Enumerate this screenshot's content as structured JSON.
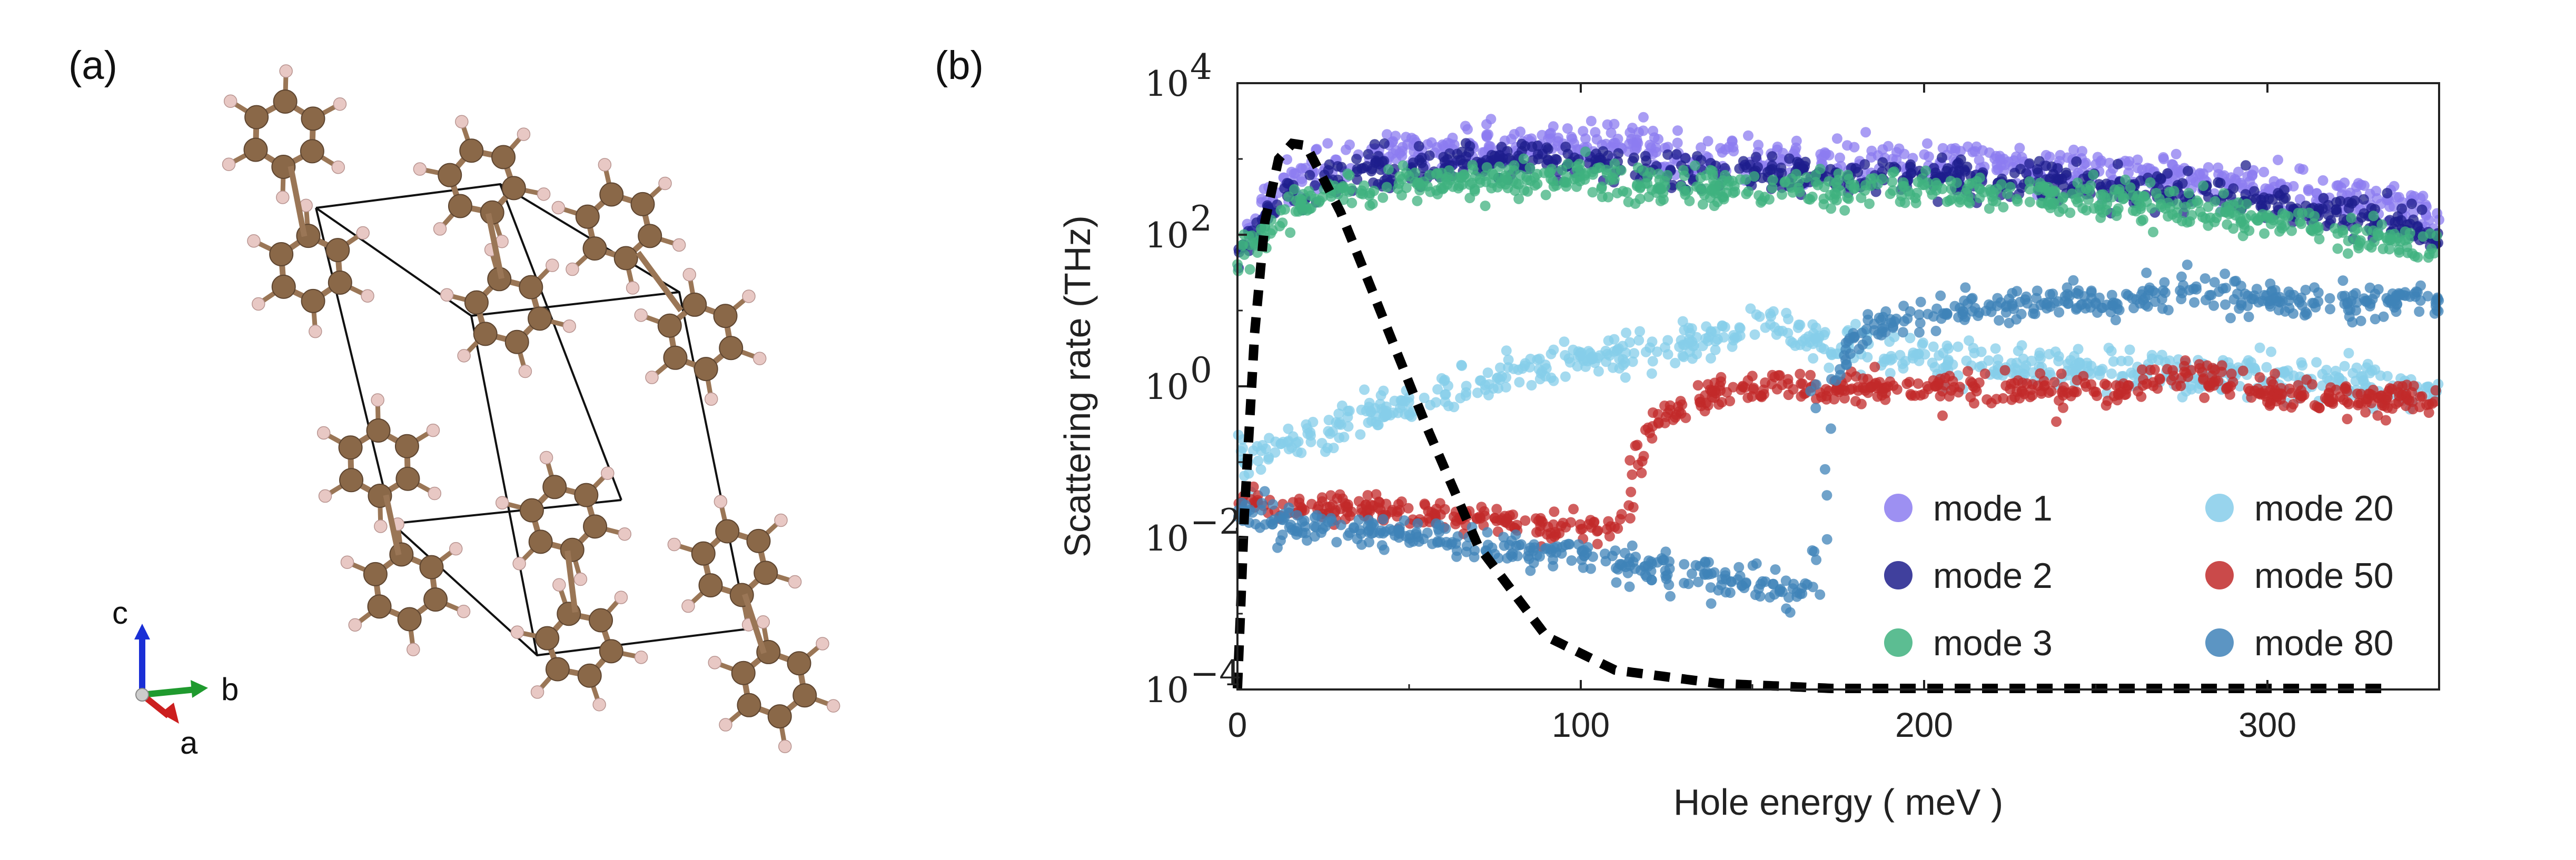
{
  "panel_a": {
    "label": "(a)",
    "triad": {
      "c": "c",
      "b": "b",
      "a": "a"
    },
    "colors": {
      "carbon": "#8a6848",
      "hydrogen": "#e8c8c4",
      "bond": "#9a7656",
      "cell": "#111111",
      "axis_c": "#1a2fd6",
      "axis_b": "#1f9a2e",
      "axis_a": "#cc1f1f"
    }
  },
  "panel_b": {
    "label": "(b)"
  },
  "chart_data": {
    "type": "scatter",
    "xlabel": "Hole energy ( meV )",
    "ylabel": "Scattering rate (THz)",
    "xlim": [
      0,
      350
    ],
    "ylim_log10": [
      -4,
      4
    ],
    "y_scale": "log",
    "x_ticks": [
      "0",
      "100",
      "200",
      "300"
    ],
    "y_ticks": [
      {
        "base": "10",
        "exp": "−4"
      },
      {
        "base": "10",
        "exp": "−2"
      },
      {
        "base": "10",
        "exp": "0"
      },
      {
        "base": "10",
        "exp": "2"
      },
      {
        "base": "10",
        "exp": "4"
      }
    ],
    "legend_placement": "lower-right",
    "series": [
      {
        "name": "mode 1",
        "color": "#8c7cf0",
        "x": [
          0,
          10,
          20,
          40,
          60,
          80,
          100,
          110,
          130,
          150,
          170,
          200,
          230,
          260,
          290,
          320,
          350
        ],
        "y": [
          80,
          300,
          700,
          1200,
          1400,
          1500,
          1600,
          1800,
          1000,
          1100,
          950,
          900,
          800,
          650,
          450,
          320,
          180
        ]
      },
      {
        "name": "mode 2",
        "color": "#1e1e8c",
        "x": [
          0,
          10,
          20,
          40,
          60,
          80,
          100,
          120,
          150,
          180,
          200,
          230,
          260,
          290,
          320,
          350
        ],
        "y": [
          60,
          200,
          450,
          700,
          800,
          900,
          1000,
          700,
          650,
          600,
          580,
          520,
          420,
          300,
          200,
          100
        ]
      },
      {
        "name": "mode 3",
        "color": "#3fb27f",
        "x": [
          0,
          10,
          20,
          40,
          60,
          80,
          100,
          120,
          150,
          180,
          200,
          230,
          260,
          290,
          320,
          350
        ],
        "y": [
          40,
          150,
          300,
          450,
          500,
          550,
          600,
          450,
          420,
          400,
          380,
          350,
          280,
          180,
          110,
          70
        ]
      },
      {
        "name": "mode 20",
        "color": "#86cdea",
        "x": [
          0,
          20,
          40,
          60,
          80,
          100,
          120,
          140,
          155,
          170,
          190,
          210,
          240,
          270,
          300,
          330,
          350
        ],
        "y": [
          0.1,
          0.2,
          0.4,
          0.8,
          1.4,
          2.2,
          3.0,
          4.2,
          6.5,
          3.8,
          2.6,
          2.2,
          1.8,
          1.5,
          1.4,
          1.1,
          0.9
        ]
      },
      {
        "name": "mode 50",
        "color": "#c12a2a",
        "x": [
          0,
          40,
          80,
          110,
          113,
          116,
          120,
          140,
          170,
          200,
          230,
          260,
          275,
          300,
          330,
          350
        ],
        "y": [
          0.03,
          0.022,
          0.016,
          0.013,
          0.02,
          0.08,
          0.3,
          0.9,
          1.0,
          0.9,
          0.85,
          0.9,
          1.5,
          0.85,
          0.7,
          0.6
        ]
      },
      {
        "name": "mode 80",
        "color": "#3f83b8",
        "x": [
          0,
          40,
          80,
          120,
          150,
          165,
          168,
          172,
          180,
          200,
          230,
          260,
          275,
          300,
          330,
          350
        ],
        "y": [
          0.02,
          0.012,
          0.007,
          0.004,
          0.0025,
          0.002,
          0.01,
          1.0,
          5.0,
          9.0,
          12.0,
          14.0,
          22.0,
          14.0,
          13.0,
          13.0
        ]
      },
      {
        "name": "",
        "style": "dashed-line",
        "color": "#000000",
        "x": [
          0,
          2,
          5,
          8,
          12,
          16,
          20,
          30,
          40,
          55,
          70,
          90,
          110,
          140,
          180,
          250,
          335
        ],
        "y": [
          0.0001,
          0.02,
          5,
          150,
          1000,
          1600,
          1500,
          200,
          15,
          0.3,
          0.008,
          0.0005,
          0.00018,
          0.00012,
          0.0001,
          0.0001,
          0.0001
        ]
      }
    ]
  }
}
